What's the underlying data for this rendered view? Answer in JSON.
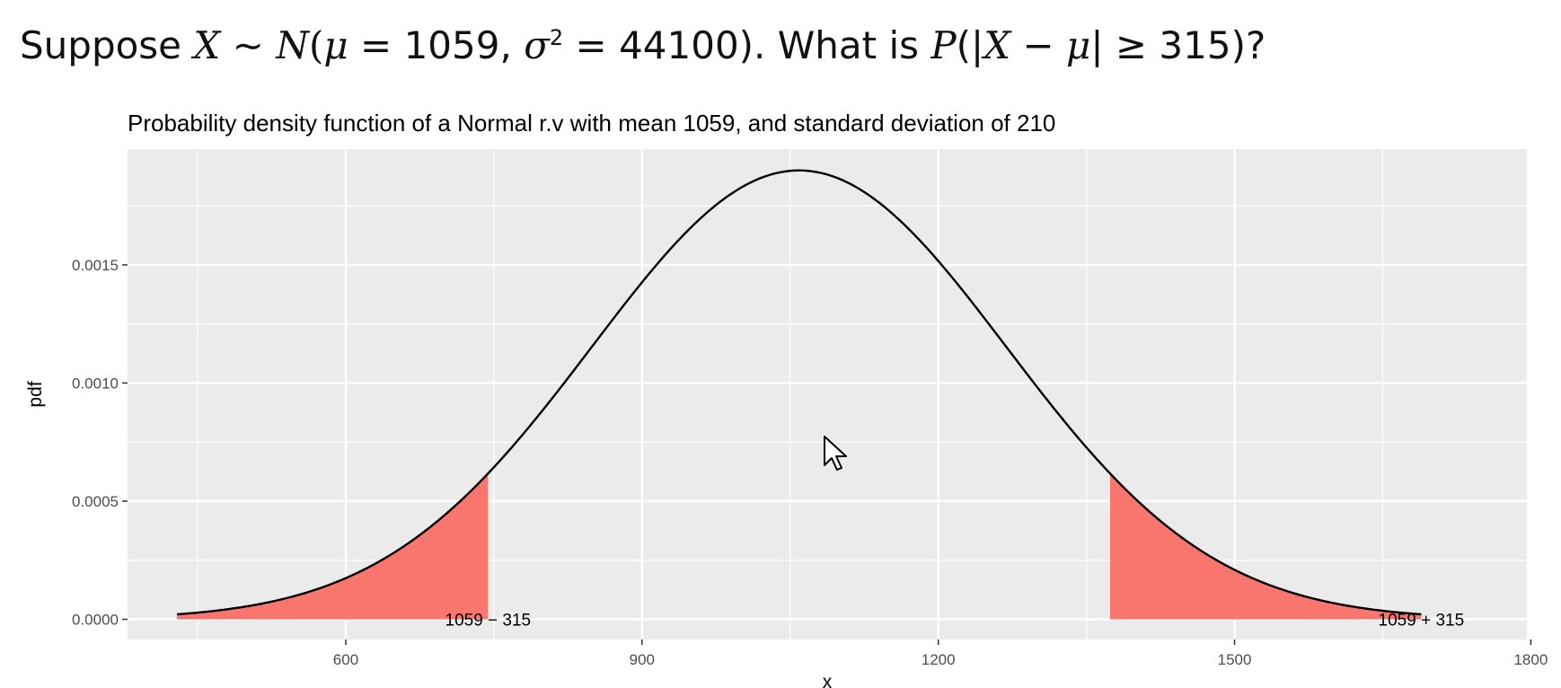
{
  "question": {
    "text": "Suppose X ∼ N(μ = 1059, σ² = 44100). What is P(|X − μ| ≥ 315)?",
    "lead": "Suppose",
    "var": "X",
    "tilde": "∼",
    "dist": "N",
    "mu": "μ",
    "eq": "=",
    "mean": "1059,",
    "sigma": "σ",
    "sup": "2",
    "variance": "44100",
    "close": ").",
    "what": "What is",
    "P": "P",
    "abs_open": "(|",
    "minus": "−",
    "ge": "| ≥",
    "bound": "315",
    "end": ")?"
  },
  "chart_data": {
    "type": "area",
    "title": "Probability density function of a Normal r.v with mean 1059, and standard deviation of 210",
    "xlabel": "x",
    "ylabel": "pdf",
    "distribution": {
      "family": "normal",
      "mean": 1059,
      "sd": 210
    },
    "x_range": [
      429,
      1689
    ],
    "xlim": [
      379,
      1796
    ],
    "ylim": [
      -8.55e-05,
      0.00199
    ],
    "xticks": [
      600,
      900,
      1200,
      1500,
      1800
    ],
    "yticks": [
      0,
      0.0005,
      0.001,
      0.0015
    ],
    "ytick_labels": [
      "0.0000",
      "0.0005",
      "0.0010",
      "0.0015"
    ],
    "grid": true,
    "shaded_regions": [
      {
        "from": 429,
        "to": 744,
        "label": "1059 − 315"
      },
      {
        "from": 1374,
        "to": 1689,
        "label": "1059 + 315"
      }
    ],
    "colors": {
      "panel": "#ebebeb",
      "grid": "#ffffff",
      "curve": "#000000",
      "fill": "#f8766d"
    }
  }
}
